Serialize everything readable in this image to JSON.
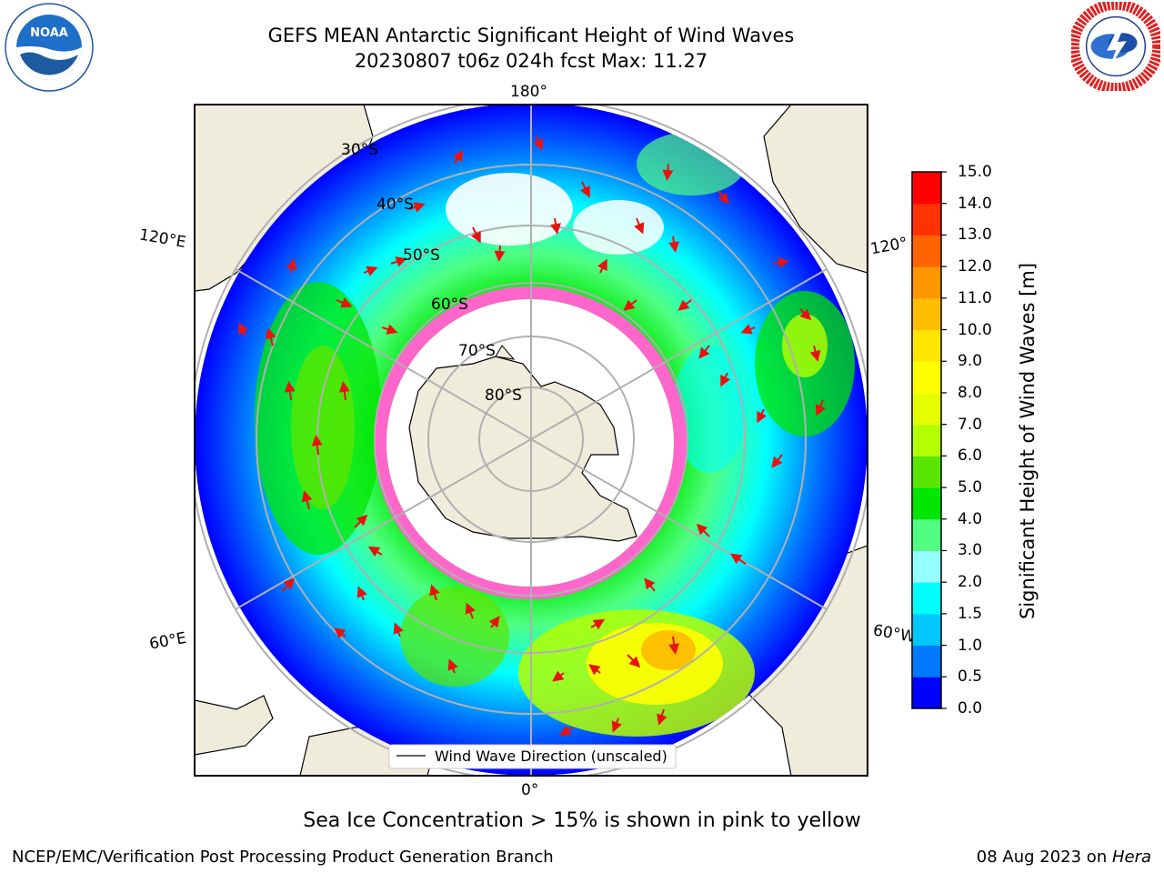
{
  "header": {
    "title_line1": "GEFS MEAN Antarctic Significant Height of Wind Waves",
    "title_line2": "20230807 t06z 024h fcst   Max: 11.27"
  },
  "logos": {
    "noaa": {
      "text": "NOAA",
      "ring_text": "NATIONAL OCEANIC AND ATMOSPHERIC ADMINISTRATION • U.S. DEPARTMENT OF COMMERCE"
    },
    "nws": {
      "ring_text": "NATIONAL WEATHER SERVICE"
    }
  },
  "map": {
    "projection": "south-polar-stereographic",
    "longitude_labels": {
      "top": "180°",
      "bottom": "0°",
      "upper_left": "120°E",
      "lower_left": "60°E",
      "upper_right": "120°",
      "lower_right": "60°W"
    },
    "latitude_labels": [
      "30°S",
      "40°S",
      "50°S",
      "60°S",
      "70°S",
      "80°S"
    ],
    "legend_label": "Wind Wave Direction (unscaled)",
    "colors": {
      "land": "#efecdc",
      "sea_ice": "#ff66cc",
      "arrows": "#e8120e",
      "grid": "#b0b0b0"
    }
  },
  "colorbar": {
    "label": "Significant Height of Wind Waves [m]",
    "ticks": [
      "0.0",
      "0.5",
      "1.0",
      "1.5",
      "2.0",
      "3.0",
      "4.0",
      "5.0",
      "6.0",
      "7.0",
      "8.0",
      "9.0",
      "10.0",
      "11.0",
      "12.0",
      "13.0",
      "14.0",
      "15.0"
    ],
    "colors": [
      "#0000ff",
      "#0078ff",
      "#00c8ff",
      "#00ffff",
      "#96ffff",
      "#50ff82",
      "#00e600",
      "#5ae600",
      "#b4ff00",
      "#e6ff00",
      "#ffff00",
      "#ffe600",
      "#ffbe00",
      "#ff9600",
      "#ff6400",
      "#ff3200",
      "#ff0000"
    ]
  },
  "footer": {
    "subtitle": "Sea Ice Concentration > 15% is shown in pink to yellow",
    "credit": "NCEP/EMC/Verification Post Processing Product Generation Branch",
    "date": "08 Aug 2023 on ",
    "machine": "Hera"
  }
}
